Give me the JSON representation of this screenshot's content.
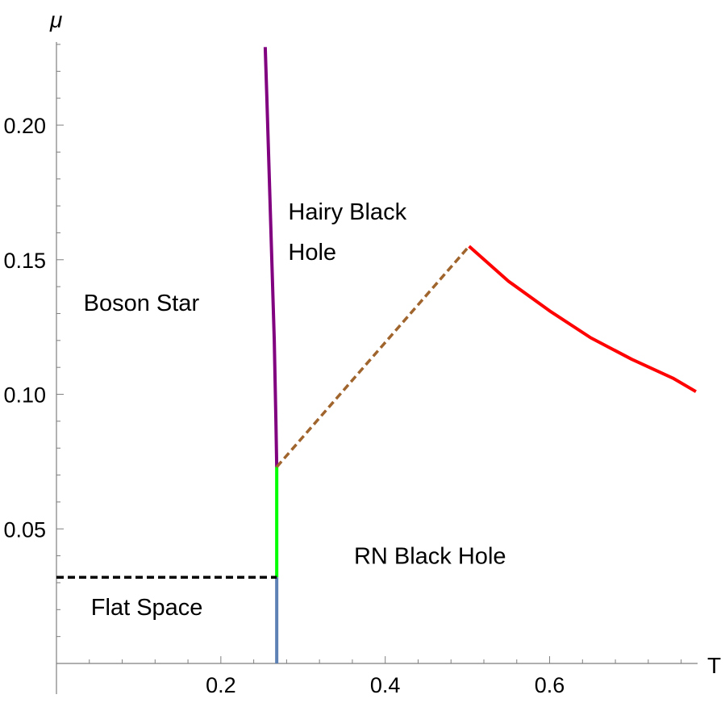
{
  "chart_data": {
    "type": "line",
    "title": "",
    "xlabel": "T",
    "ylabel": "μ",
    "xlim": [
      0.0,
      0.78
    ],
    "ylim": [
      0.0,
      0.23
    ],
    "x_ticks": [
      0.2,
      0.4,
      0.6
    ],
    "x_tick_labels": [
      "0.2",
      "0.4",
      "0.6"
    ],
    "y_ticks": [
      0.05,
      0.1,
      0.15,
      0.2
    ],
    "y_tick_labels": [
      "0.05",
      "0.10",
      "0.15",
      "0.20"
    ],
    "grid": false,
    "series": [
      {
        "key": "purple",
        "color": "#800080",
        "style": "solid",
        "x": [
          0.254,
          0.256,
          0.259,
          0.262,
          0.265,
          0.267,
          0.268
        ],
        "y": [
          0.229,
          0.21,
          0.18,
          0.15,
          0.12,
          0.09,
          0.073
        ]
      },
      {
        "key": "green",
        "color": "#00ff00",
        "style": "solid",
        "x": [
          0.268,
          0.268
        ],
        "y": [
          0.073,
          0.032
        ]
      },
      {
        "key": "blue",
        "color": "#5e81b5",
        "style": "solid",
        "x": [
          0.268,
          0.268
        ],
        "y": [
          0.032,
          0.0
        ]
      },
      {
        "key": "black-dashed",
        "color": "#000000",
        "style": "dashed",
        "x": [
          0.0,
          0.268
        ],
        "y": [
          0.032,
          0.032
        ]
      },
      {
        "key": "brown-dashed",
        "color": "#a0642d",
        "style": "dashed",
        "x": [
          0.268,
          0.502
        ],
        "y": [
          0.073,
          0.155
        ]
      },
      {
        "key": "red",
        "color": "#ff0000",
        "style": "solid",
        "x": [
          0.502,
          0.55,
          0.6,
          0.65,
          0.7,
          0.75,
          0.778
        ],
        "y": [
          0.155,
          0.142,
          0.131,
          0.121,
          0.113,
          0.106,
          0.101
        ]
      }
    ],
    "annotations": [
      {
        "key": "hairy-1",
        "text": "Hairy Black",
        "x": 0.282,
        "y": 0.165
      },
      {
        "key": "hairy-2",
        "text": "Hole",
        "x": 0.282,
        "y": 0.15
      },
      {
        "key": "boson",
        "text": "Boson Star",
        "x": 0.033,
        "y": 0.131
      },
      {
        "key": "rn",
        "text": "RN Black Hole",
        "x": 0.362,
        "y": 0.037
      },
      {
        "key": "flat",
        "text": "Flat Space",
        "x": 0.042,
        "y": 0.018
      }
    ]
  }
}
